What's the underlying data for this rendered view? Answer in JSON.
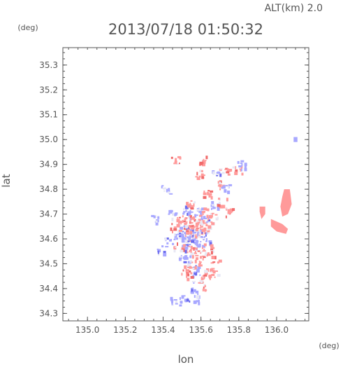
{
  "header": {
    "alt_label": "ALT(km)  2.0",
    "timestamp": "2013/07/18  01:50:32",
    "y_unit": "(deg)",
    "x_unit": "(deg)"
  },
  "chart_data": {
    "type": "heatmap",
    "xlabel": "lon",
    "ylabel": "lat",
    "xlim": [
      134.87,
      136.17
    ],
    "ylim": [
      34.27,
      35.37
    ],
    "xticks": [
      135.0,
      135.2,
      135.4,
      135.6,
      135.8,
      136.0
    ],
    "xtick_labels": [
      "135.0",
      "135.2",
      "135.4",
      "135.6",
      "135.8",
      "136.0"
    ],
    "yticks": [
      34.3,
      34.4,
      34.5,
      34.6,
      34.7,
      34.8,
      34.9,
      35.0,
      35.1,
      35.2,
      35.3
    ],
    "ytick_labels": [
      "34.3",
      "34.4",
      "34.5",
      "34.6",
      "34.7",
      "34.8",
      "34.9",
      "35.0",
      "35.1",
      "35.2",
      "35.3"
    ],
    "grid": false,
    "colors": {
      "positive": "#ff9a9a",
      "positive_strong": "#f06a6a",
      "negative": "#a8a8ff",
      "negative_strong": "#6a6aee",
      "neutral": "#e8e8f4",
      "axis": "#555555"
    },
    "cells": [
      [
        135.53,
        34.66,
        "p"
      ],
      [
        135.56,
        34.63,
        "n"
      ],
      [
        135.51,
        34.6,
        "p"
      ],
      [
        135.58,
        34.58,
        "n"
      ],
      [
        135.55,
        34.7,
        "n"
      ],
      [
        135.52,
        34.72,
        "n"
      ],
      [
        135.6,
        34.67,
        "p"
      ],
      [
        135.54,
        34.56,
        "p"
      ],
      [
        135.57,
        34.62,
        "p"
      ],
      [
        135.5,
        34.64,
        "n"
      ],
      [
        135.62,
        34.6,
        "n"
      ],
      [
        135.49,
        34.68,
        "p"
      ],
      [
        135.59,
        34.54,
        "p"
      ],
      [
        135.53,
        34.52,
        "n"
      ],
      [
        135.61,
        34.64,
        "p"
      ],
      [
        135.47,
        34.62,
        "n"
      ],
      [
        135.56,
        34.68,
        "p"
      ],
      [
        135.52,
        34.58,
        "n"
      ],
      [
        135.48,
        34.57,
        "p"
      ],
      [
        135.63,
        34.57,
        "p"
      ],
      [
        135.55,
        34.5,
        "p"
      ],
      [
        135.58,
        34.48,
        "n"
      ],
      [
        135.51,
        34.48,
        "p"
      ],
      [
        135.64,
        34.48,
        "p"
      ],
      [
        135.62,
        34.44,
        "p"
      ],
      [
        135.57,
        34.44,
        "n"
      ],
      [
        135.45,
        34.7,
        "n"
      ],
      [
        135.43,
        34.6,
        "n"
      ],
      [
        135.54,
        34.46,
        "p"
      ],
      [
        135.66,
        34.46,
        "p"
      ],
      [
        135.59,
        34.5,
        "p"
      ],
      [
        135.5,
        34.54,
        "n"
      ],
      [
        135.58,
        34.71,
        "n"
      ],
      [
        135.61,
        34.71,
        "p"
      ],
      [
        135.64,
        34.66,
        "p"
      ],
      [
        135.46,
        34.65,
        "p"
      ],
      [
        135.52,
        34.68,
        "p"
      ],
      [
        135.55,
        34.6,
        "n"
      ],
      [
        135.6,
        34.62,
        "n"
      ],
      [
        135.57,
        34.55,
        "p"
      ],
      [
        135.63,
        34.78,
        "p"
      ],
      [
        135.66,
        34.74,
        "n"
      ],
      [
        135.71,
        34.75,
        "p"
      ],
      [
        135.69,
        34.82,
        "p"
      ],
      [
        135.73,
        34.81,
        "n"
      ],
      [
        135.72,
        34.87,
        "p"
      ],
      [
        135.68,
        34.87,
        "n"
      ],
      [
        135.59,
        34.86,
        "p"
      ],
      [
        135.61,
        34.92,
        "p"
      ],
      [
        135.46,
        34.92,
        "p"
      ],
      [
        135.35,
        34.68,
        "n"
      ],
      [
        135.39,
        34.56,
        "n"
      ],
      [
        135.41,
        34.8,
        "n"
      ],
      [
        135.79,
        34.88,
        "p"
      ],
      [
        135.81,
        34.9,
        "n"
      ],
      [
        135.74,
        34.71,
        "p"
      ],
      [
        135.6,
        34.41,
        "p"
      ],
      [
        135.56,
        34.39,
        "n"
      ],
      [
        135.56,
        34.36,
        "n"
      ],
      [
        135.51,
        34.36,
        "n"
      ],
      [
        135.46,
        34.35,
        "n"
      ],
      [
        135.63,
        34.54,
        "p"
      ],
      [
        135.67,
        34.52,
        "p"
      ],
      [
        135.53,
        34.61,
        "n"
      ],
      [
        135.58,
        34.65,
        "p"
      ],
      [
        135.54,
        34.64,
        "p"
      ],
      [
        135.49,
        34.61,
        "n"
      ],
      [
        135.62,
        34.68,
        "n"
      ],
      [
        135.66,
        34.69,
        "p"
      ],
      [
        135.54,
        34.74,
        "p"
      ]
    ],
    "patches": [
      {
        "shape": [
          [
            136.04,
            34.8
          ],
          [
            136.07,
            34.8
          ],
          [
            136.08,
            34.74
          ],
          [
            136.06,
            34.7
          ],
          [
            136.03,
            34.69
          ],
          [
            136.02,
            34.73
          ],
          [
            136.03,
            34.77
          ]
        ],
        "sign": "p"
      },
      {
        "shape": [
          [
            135.97,
            34.68
          ],
          [
            136.03,
            34.66
          ],
          [
            136.06,
            34.64
          ],
          [
            136.05,
            34.62
          ],
          [
            136.0,
            34.63
          ],
          [
            135.97,
            34.65
          ]
        ],
        "sign": "p"
      },
      {
        "shape": [
          [
            135.91,
            34.73
          ],
          [
            135.94,
            34.73
          ],
          [
            135.94,
            34.7
          ],
          [
            135.92,
            34.68
          ],
          [
            135.91,
            34.71
          ]
        ],
        "sign": "p"
      },
      {
        "shape": [
          [
            135.74,
            34.72
          ],
          [
            135.76,
            34.72
          ],
          [
            135.76,
            34.7
          ],
          [
            135.74,
            34.7
          ]
        ],
        "sign": "p"
      },
      {
        "shape": [
          [
            136.09,
            35.01
          ],
          [
            136.11,
            35.01
          ],
          [
            136.11,
            34.99
          ],
          [
            136.09,
            34.99
          ]
        ],
        "sign": "n"
      }
    ]
  }
}
